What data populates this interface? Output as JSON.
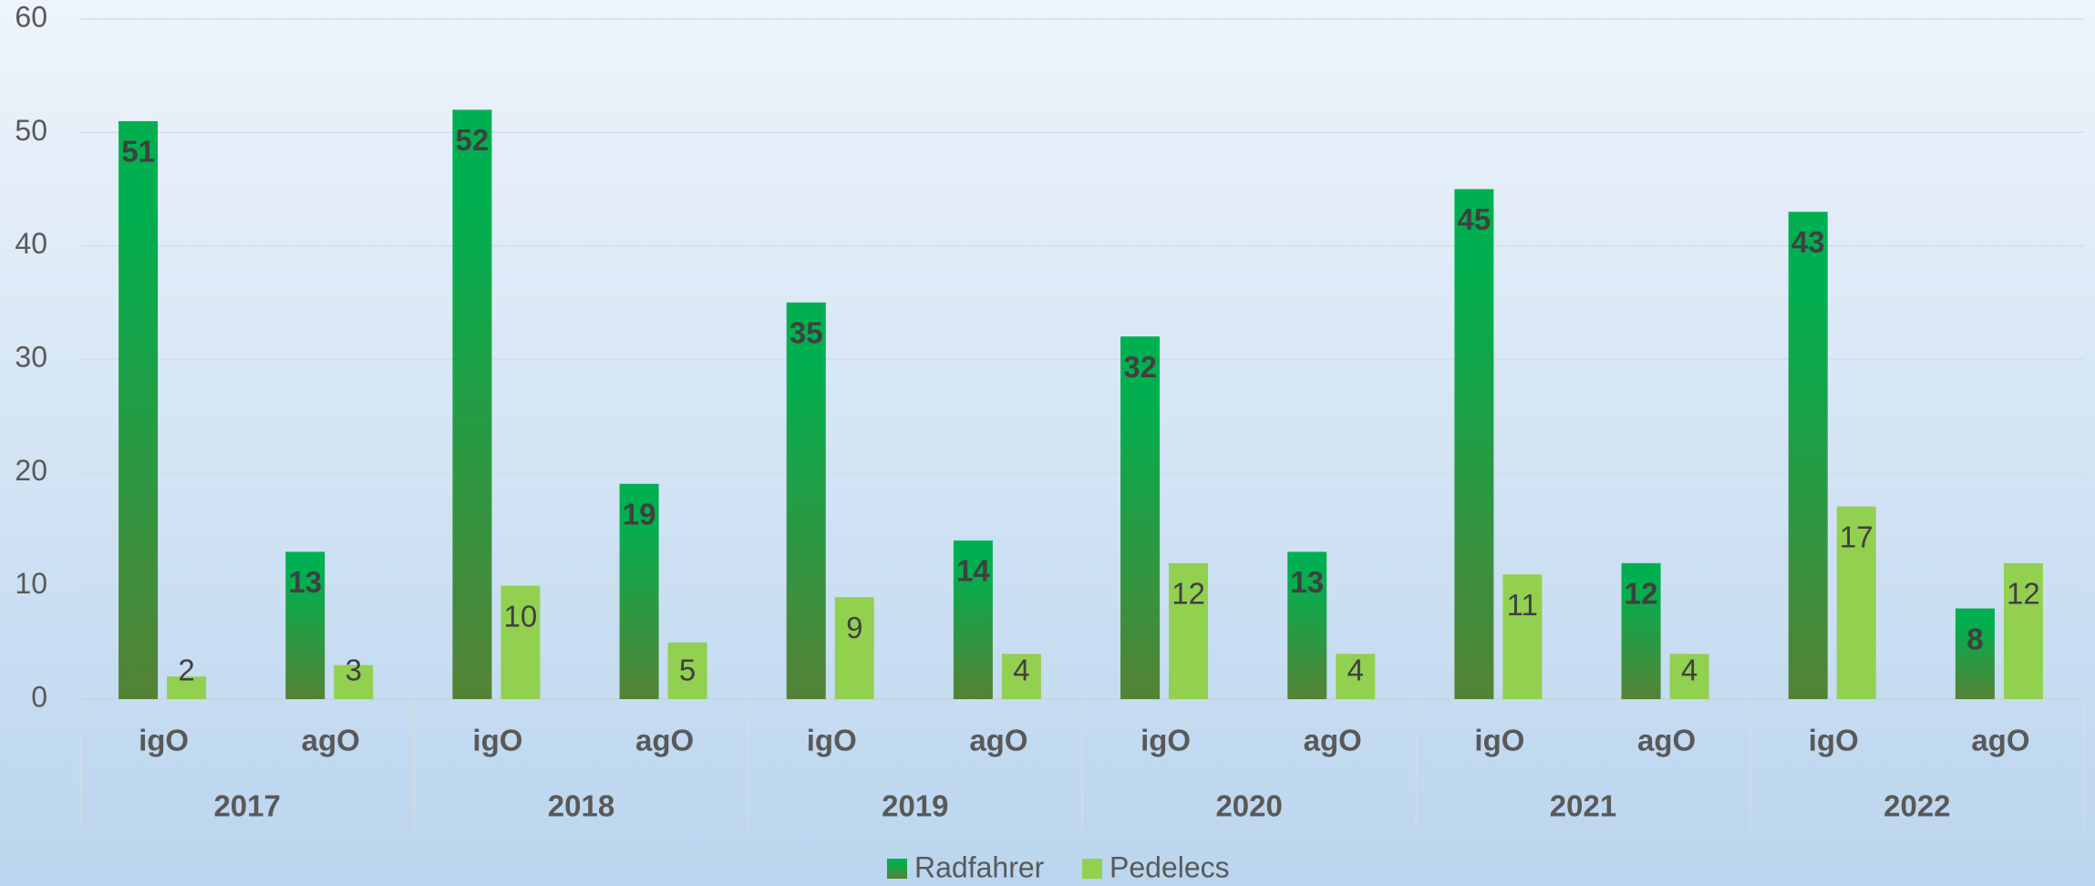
{
  "chart_data": {
    "type": "bar",
    "categories": [
      "igO",
      "agO",
      "igO",
      "agO",
      "igO",
      "agO",
      "igO",
      "agO",
      "igO",
      "agO",
      "igO",
      "agO"
    ],
    "groups": [
      "2017",
      "2018",
      "2019",
      "2020",
      "2021",
      "2022"
    ],
    "series": [
      {
        "name": "Radfahrer",
        "color": "#00b050",
        "values": [
          51,
          13,
          52,
          19,
          35,
          14,
          32,
          13,
          45,
          12,
          43,
          8
        ]
      },
      {
        "name": "Pedelecs",
        "color": "#92d050",
        "values": [
          2,
          3,
          10,
          5,
          9,
          4,
          12,
          4,
          11,
          4,
          17,
          12
        ]
      }
    ],
    "ylim": [
      0,
      60
    ],
    "yticks": [
      0,
      10,
      20,
      30,
      40,
      50,
      60
    ],
    "grid": true,
    "legend": "bottom"
  }
}
